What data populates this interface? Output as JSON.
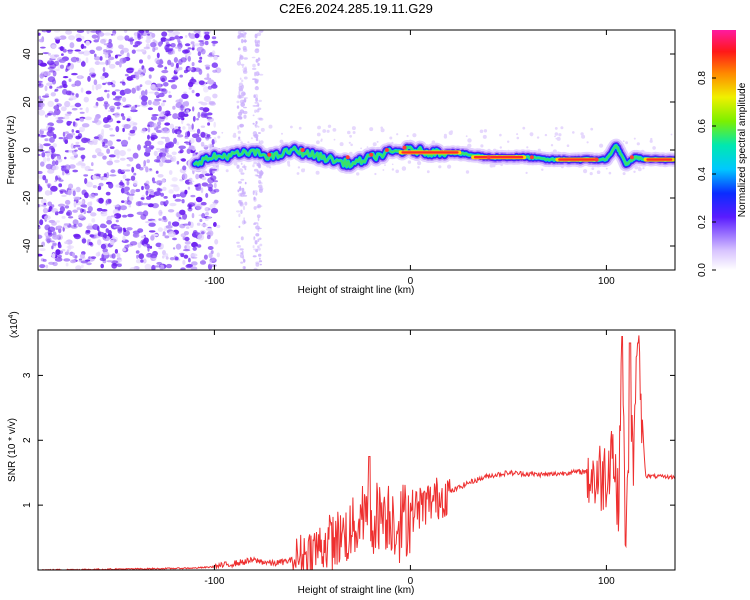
{
  "title": "C2E6.2024.285.19.11.G29",
  "colors": {
    "snr_line": "#ee3030",
    "spectro_bg_dots": "#7a3cf2",
    "spectro_core": "#ff2a2a"
  },
  "chart_data": [
    {
      "type": "heatmap",
      "xlabel": "Height of straight line (km)",
      "ylabel": "Frequency (Hz)",
      "xlim": [
        -190,
        135
      ],
      "ylim": [
        -50,
        50
      ],
      "x_ticks": [
        -100,
        0,
        100
      ],
      "y_ticks": [
        -40,
        -20,
        0,
        20,
        40
      ],
      "colorbar": {
        "label": "Normalized spectral amplitude",
        "range": [
          0,
          1
        ],
        "ticks": [
          "0.0",
          "0.2",
          "0.4",
          "0.6",
          "0.8"
        ]
      },
      "ridge": {
        "x": [
          -110,
          -100,
          -90,
          -80,
          -70,
          -60,
          -50,
          -40,
          -30,
          -20,
          -10,
          0,
          10,
          20,
          30,
          40,
          50,
          60,
          70,
          80,
          90,
          100,
          105,
          110,
          115,
          120,
          135
        ],
        "y": [
          -5,
          -3,
          -2,
          -1,
          -3,
          0,
          -2,
          -4,
          -6,
          -3,
          -1,
          0,
          -1,
          -1,
          -2,
          -3,
          -3,
          -3,
          -4,
          -4,
          -4,
          -4,
          2,
          -6,
          -3,
          -4,
          -4
        ]
      },
      "noise_region_x": [
        -190,
        -100
      ]
    },
    {
      "type": "line",
      "xlabel": "Height of straight line (km)",
      "ylabel": "SNR (10 * v/v)",
      "yscale_label": "(x10",
      "yscale_exp": "4",
      "xlim": [
        -190,
        135
      ],
      "ylim": [
        0,
        3.7
      ],
      "x_ticks": [
        -100,
        0,
        100
      ],
      "y_ticks": [
        1,
        2,
        3
      ],
      "series": [
        {
          "values_x": [
            -190,
            -130,
            -110,
            -100,
            -90,
            -80,
            -70,
            -60,
            -50,
            -40,
            -30,
            -25,
            -20,
            -15,
            -10,
            -5,
            0,
            10,
            20,
            30,
            40,
            50,
            60,
            70,
            80,
            90,
            95,
            100,
            103,
            106,
            108,
            110,
            112,
            114,
            116,
            120,
            135
          ],
          "values_y": [
            0.0,
            0.02,
            0.03,
            0.05,
            0.1,
            0.15,
            0.1,
            0.15,
            0.3,
            0.45,
            0.6,
            0.8,
            0.75,
            0.9,
            0.85,
            0.7,
            0.9,
            1.05,
            1.2,
            1.35,
            1.45,
            1.5,
            1.48,
            1.47,
            1.5,
            1.52,
            1.4,
            1.5,
            2.0,
            0.9,
            3.6,
            0.2,
            2.5,
            1.6,
            3.5,
            1.45,
            1.43
          ]
        }
      ]
    }
  ]
}
